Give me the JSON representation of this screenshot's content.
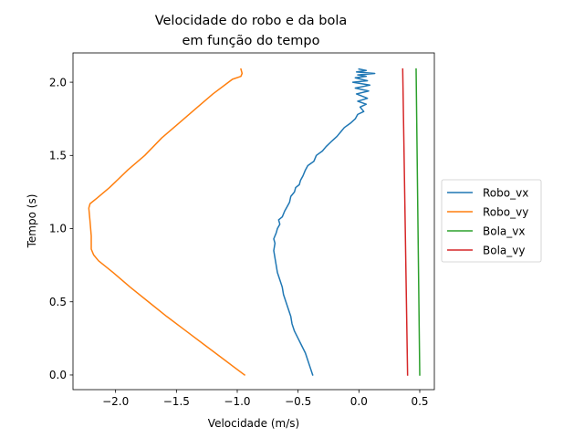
{
  "chart_data": {
    "type": "line",
    "title_lines": [
      "Velocidade do robo e da bola",
      "em função do tempo"
    ],
    "xlabel": "Velocidade (m/s)",
    "ylabel": "Tempo (s)",
    "xlim": [
      -2.35,
      0.62
    ],
    "ylim": [
      -0.1,
      2.2
    ],
    "x_ticks": [
      -2.0,
      -1.5,
      -1.0,
      -0.5,
      0.0,
      0.5
    ],
    "x_tick_labels": [
      "−2.0",
      "−1.5",
      "−1.0",
      "−0.5",
      "0.0",
      "0.5"
    ],
    "y_ticks": [
      0.0,
      0.5,
      1.0,
      1.5,
      2.0
    ],
    "y_tick_labels": [
      "0.0",
      "0.5",
      "1.0",
      "1.5",
      "2.0"
    ],
    "grid": false,
    "legend_position": "center-right-outside",
    "series": [
      {
        "name": "Robo_vx",
        "color": "#1f77b4",
        "points": [
          [
            -0.38,
            0.0
          ],
          [
            -0.4,
            0.05
          ],
          [
            -0.42,
            0.1
          ],
          [
            -0.44,
            0.15
          ],
          [
            -0.47,
            0.2
          ],
          [
            -0.5,
            0.25
          ],
          [
            -0.53,
            0.3
          ],
          [
            -0.55,
            0.35
          ],
          [
            -0.56,
            0.4
          ],
          [
            -0.58,
            0.45
          ],
          [
            -0.6,
            0.5
          ],
          [
            -0.62,
            0.55
          ],
          [
            -0.63,
            0.6
          ],
          [
            -0.65,
            0.65
          ],
          [
            -0.67,
            0.7
          ],
          [
            -0.68,
            0.75
          ],
          [
            -0.69,
            0.8
          ],
          [
            -0.7,
            0.85
          ],
          [
            -0.69,
            0.9
          ],
          [
            -0.7,
            0.93
          ],
          [
            -0.68,
            0.97
          ],
          [
            -0.67,
            1.0
          ],
          [
            -0.65,
            1.03
          ],
          [
            -0.66,
            1.06
          ],
          [
            -0.63,
            1.08
          ],
          [
            -0.61,
            1.12
          ],
          [
            -0.59,
            1.15
          ],
          [
            -0.57,
            1.18
          ],
          [
            -0.56,
            1.22
          ],
          [
            -0.53,
            1.25
          ],
          [
            -0.52,
            1.28
          ],
          [
            -0.49,
            1.3
          ],
          [
            -0.48,
            1.33
          ],
          [
            -0.46,
            1.36
          ],
          [
            -0.44,
            1.4
          ],
          [
            -0.42,
            1.43
          ],
          [
            -0.37,
            1.46
          ],
          [
            -0.35,
            1.5
          ],
          [
            -0.3,
            1.53
          ],
          [
            -0.27,
            1.56
          ],
          [
            -0.22,
            1.6
          ],
          [
            -0.18,
            1.63
          ],
          [
            -0.15,
            1.66
          ],
          [
            -0.12,
            1.69
          ],
          [
            -0.07,
            1.72
          ],
          [
            -0.03,
            1.75
          ],
          [
            -0.01,
            1.78
          ],
          [
            0.04,
            1.8
          ],
          [
            0.01,
            1.83
          ],
          [
            0.06,
            1.85
          ],
          [
            -0.01,
            1.87
          ],
          [
            0.07,
            1.89
          ],
          [
            -0.02,
            1.92
          ],
          [
            0.08,
            1.94
          ],
          [
            -0.03,
            1.96
          ],
          [
            0.09,
            1.98
          ],
          [
            -0.05,
            2.0
          ],
          [
            0.07,
            2.01
          ],
          [
            -0.03,
            2.03
          ],
          [
            0.06,
            2.04
          ],
          [
            -0.01,
            2.05
          ],
          [
            0.13,
            2.06
          ],
          [
            -0.02,
            2.07
          ],
          [
            0.06,
            2.08
          ],
          [
            0.0,
            2.09
          ]
        ]
      },
      {
        "name": "Robo_vy",
        "color": "#ff7f0e",
        "points": [
          [
            -0.94,
            0.0
          ],
          [
            -1.1,
            0.1
          ],
          [
            -1.26,
            0.2
          ],
          [
            -1.42,
            0.3
          ],
          [
            -1.58,
            0.4
          ],
          [
            -1.73,
            0.5
          ],
          [
            -1.88,
            0.6
          ],
          [
            -2.02,
            0.7
          ],
          [
            -2.14,
            0.78
          ],
          [
            -2.18,
            0.82
          ],
          [
            -2.2,
            0.86
          ],
          [
            -2.2,
            0.95
          ],
          [
            -2.21,
            1.05
          ],
          [
            -2.22,
            1.14
          ],
          [
            -2.21,
            1.17
          ],
          [
            -2.15,
            1.21
          ],
          [
            -2.05,
            1.28
          ],
          [
            -1.9,
            1.4
          ],
          [
            -1.76,
            1.5
          ],
          [
            -1.62,
            1.62
          ],
          [
            -1.48,
            1.72
          ],
          [
            -1.34,
            1.82
          ],
          [
            -1.2,
            1.92
          ],
          [
            -1.04,
            2.02
          ],
          [
            -0.97,
            2.04
          ],
          [
            -0.96,
            2.06
          ],
          [
            -0.97,
            2.09
          ]
        ]
      },
      {
        "name": "Bola_vx",
        "color": "#2ca02c",
        "points": [
          [
            0.5,
            0.0
          ],
          [
            0.47,
            2.09
          ]
        ]
      },
      {
        "name": "Bola_vy",
        "color": "#d62728",
        "points": [
          [
            0.4,
            0.0
          ],
          [
            0.36,
            2.09
          ]
        ]
      }
    ]
  }
}
